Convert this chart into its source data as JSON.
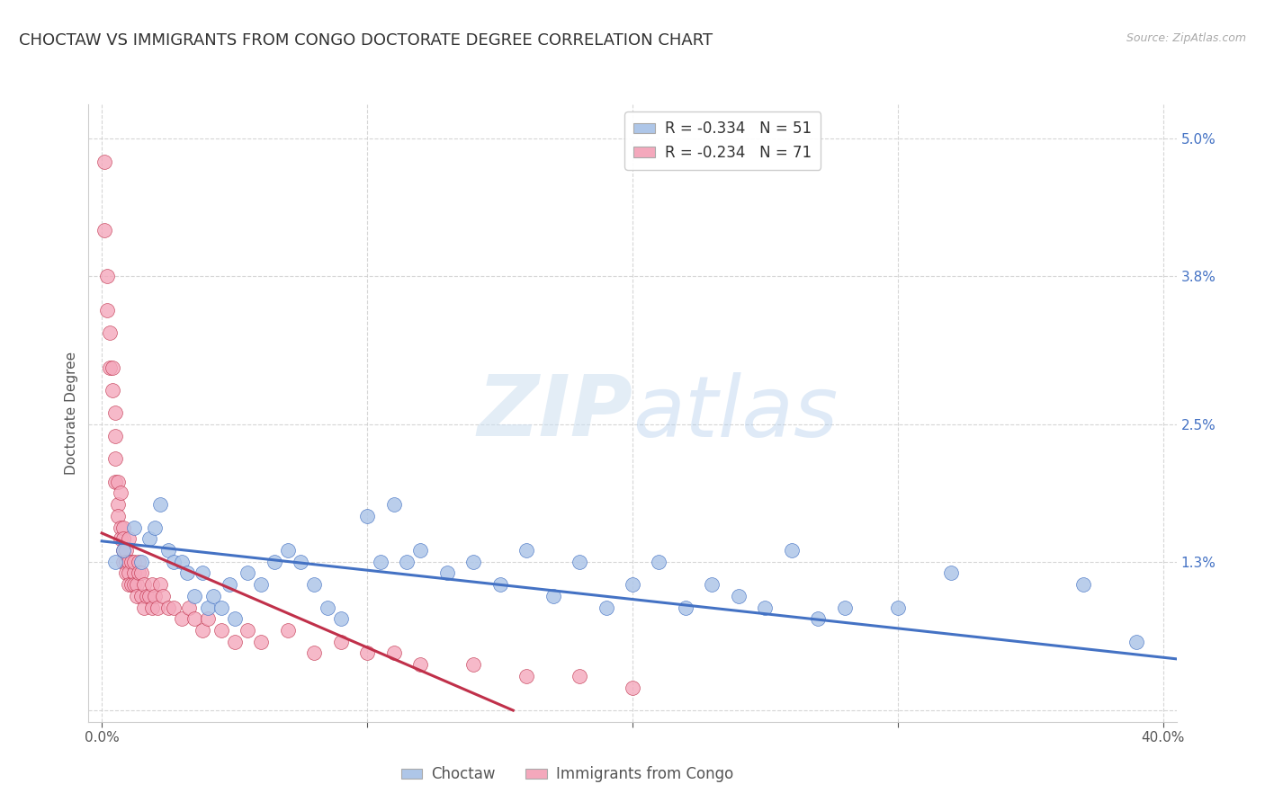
{
  "title": "CHOCTAW VS IMMIGRANTS FROM CONGO DOCTORATE DEGREE CORRELATION CHART",
  "source": "Source: ZipAtlas.com",
  "ylabel": "Doctorate Degree",
  "ytick_values": [
    0.0,
    0.013,
    0.025,
    0.038,
    0.05
  ],
  "ytick_labels": [
    "",
    "1.3%",
    "2.5%",
    "3.8%",
    "5.0%"
  ],
  "xtick_values": [
    0.0,
    0.1,
    0.2,
    0.3,
    0.4
  ],
  "xtick_labels": [
    "0.0%",
    "",
    "",
    "",
    "40.0%"
  ],
  "xlim": [
    -0.005,
    0.405
  ],
  "ylim": [
    -0.001,
    0.053
  ],
  "legend1_R": "-0.334",
  "legend1_N": "51",
  "legend2_R": "-0.234",
  "legend2_N": "71",
  "choctaw_color": "#aec6e8",
  "congo_color": "#f4a8bc",
  "line_choctaw_color": "#4472c4",
  "line_congo_color": "#c0304a",
  "background_color": "#ffffff",
  "title_fontsize": 13,
  "axis_label_fontsize": 11,
  "tick_fontsize": 11,
  "choctaw_scatter_x": [
    0.005,
    0.008,
    0.012,
    0.015,
    0.018,
    0.02,
    0.022,
    0.025,
    0.027,
    0.03,
    0.032,
    0.035,
    0.038,
    0.04,
    0.042,
    0.045,
    0.048,
    0.05,
    0.055,
    0.06,
    0.065,
    0.07,
    0.075,
    0.08,
    0.085,
    0.09,
    0.1,
    0.105,
    0.11,
    0.115,
    0.12,
    0.13,
    0.14,
    0.15,
    0.16,
    0.17,
    0.18,
    0.19,
    0.2,
    0.21,
    0.22,
    0.23,
    0.24,
    0.25,
    0.26,
    0.27,
    0.28,
    0.3,
    0.32,
    0.37,
    0.39
  ],
  "choctaw_scatter_y": [
    0.013,
    0.014,
    0.016,
    0.013,
    0.015,
    0.016,
    0.018,
    0.014,
    0.013,
    0.013,
    0.012,
    0.01,
    0.012,
    0.009,
    0.01,
    0.009,
    0.011,
    0.008,
    0.012,
    0.011,
    0.013,
    0.014,
    0.013,
    0.011,
    0.009,
    0.008,
    0.017,
    0.013,
    0.018,
    0.013,
    0.014,
    0.012,
    0.013,
    0.011,
    0.014,
    0.01,
    0.013,
    0.009,
    0.011,
    0.013,
    0.009,
    0.011,
    0.01,
    0.009,
    0.014,
    0.008,
    0.009,
    0.009,
    0.012,
    0.011,
    0.006
  ],
  "congo_scatter_x": [
    0.001,
    0.001,
    0.002,
    0.002,
    0.003,
    0.003,
    0.004,
    0.004,
    0.005,
    0.005,
    0.005,
    0.005,
    0.006,
    0.006,
    0.006,
    0.007,
    0.007,
    0.007,
    0.008,
    0.008,
    0.008,
    0.008,
    0.009,
    0.009,
    0.009,
    0.01,
    0.01,
    0.01,
    0.01,
    0.011,
    0.011,
    0.012,
    0.012,
    0.012,
    0.013,
    0.013,
    0.014,
    0.014,
    0.015,
    0.015,
    0.016,
    0.016,
    0.017,
    0.018,
    0.019,
    0.019,
    0.02,
    0.021,
    0.022,
    0.023,
    0.025,
    0.027,
    0.03,
    0.033,
    0.035,
    0.038,
    0.04,
    0.045,
    0.05,
    0.055,
    0.06,
    0.07,
    0.08,
    0.09,
    0.1,
    0.11,
    0.12,
    0.14,
    0.16,
    0.18,
    0.2
  ],
  "congo_scatter_y": [
    0.048,
    0.042,
    0.038,
    0.035,
    0.033,
    0.03,
    0.028,
    0.03,
    0.026,
    0.024,
    0.022,
    0.02,
    0.02,
    0.018,
    0.017,
    0.019,
    0.016,
    0.015,
    0.016,
    0.015,
    0.014,
    0.013,
    0.014,
    0.013,
    0.012,
    0.015,
    0.013,
    0.012,
    0.011,
    0.013,
    0.011,
    0.012,
    0.013,
    0.011,
    0.011,
    0.01,
    0.013,
    0.012,
    0.012,
    0.01,
    0.011,
    0.009,
    0.01,
    0.01,
    0.009,
    0.011,
    0.01,
    0.009,
    0.011,
    0.01,
    0.009,
    0.009,
    0.008,
    0.009,
    0.008,
    0.007,
    0.008,
    0.007,
    0.006,
    0.007,
    0.006,
    0.007,
    0.005,
    0.006,
    0.005,
    0.005,
    0.004,
    0.004,
    0.003,
    0.003,
    0.002
  ],
  "choctaw_trend_x": [
    0.0,
    0.405
  ],
  "choctaw_trend_y": [
    0.0148,
    0.0045
  ],
  "congo_trend_x": [
    0.0,
    0.155
  ],
  "congo_trend_y": [
    0.0155,
    0.0
  ]
}
